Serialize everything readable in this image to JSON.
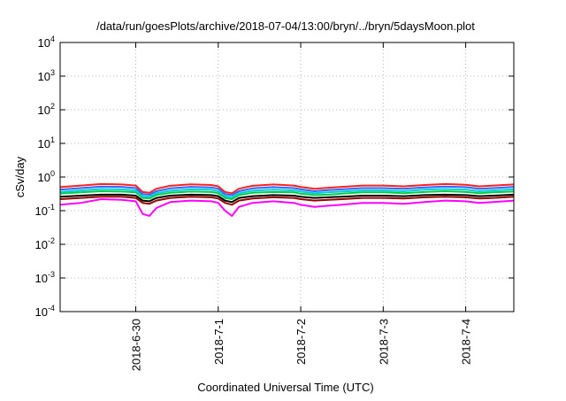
{
  "chart_data": {
    "type": "line",
    "title": "/data/run/goesPlots/archive/2018-07-04/13:00/bryn/../bryn/5daysMoon.plot",
    "xlabel": "Coordinated Universal Time (UTC)",
    "ylabel": "cSv/day",
    "xlim": [
      "2018-06-29T02:00",
      "2018-07-04T14:00"
    ],
    "yscale": "log",
    "ylim": [
      0.0001,
      10000
    ],
    "grid": true,
    "legend": "none",
    "x_ticks": [
      {
        "label": "2018-6-30",
        "value": "2018-06-30T00:00"
      },
      {
        "label": "2018-7-1",
        "value": "2018-07-01T00:00"
      },
      {
        "label": "2018-7-2",
        "value": "2018-07-02T00:00"
      },
      {
        "label": "2018-7-3",
        "value": "2018-07-03T00:00"
      },
      {
        "label": "2018-7-4",
        "value": "2018-07-04T00:00"
      }
    ],
    "y_ticks": [
      {
        "base": "10",
        "exp": "4",
        "value": 10000
      },
      {
        "base": "10",
        "exp": "3",
        "value": 1000
      },
      {
        "base": "10",
        "exp": "2",
        "value": 100
      },
      {
        "base": "10",
        "exp": "1",
        "value": 10
      },
      {
        "base": "10",
        "exp": "0",
        "value": 1
      },
      {
        "base": "10",
        "exp": "-1",
        "value": 0.1
      },
      {
        "base": "10",
        "exp": "-2",
        "value": 0.01
      },
      {
        "base": "10",
        "exp": "-3",
        "value": 0.001
      },
      {
        "base": "10",
        "exp": "-4",
        "value": 0.0001
      }
    ],
    "series": [
      {
        "color": "#ff00ff",
        "x": [
          "2018-06-29T02:00",
          "2018-06-29T08:00",
          "2018-06-29T14:00",
          "2018-06-29T20:00",
          "2018-06-30T00:00",
          "2018-06-30T02:00",
          "2018-06-30T04:00",
          "2018-06-30T06:00",
          "2018-06-30T10:00",
          "2018-06-30T16:00",
          "2018-06-30T22:00",
          "2018-07-01T00:00",
          "2018-07-01T02:00",
          "2018-07-01T04:00",
          "2018-07-01T06:00",
          "2018-07-01T10:00",
          "2018-07-01T16:00",
          "2018-07-01T22:00",
          "2018-07-02T00:00",
          "2018-07-02T04:00",
          "2018-07-02T08:00",
          "2018-07-02T12:00",
          "2018-07-02T18:00",
          "2018-07-03T00:00",
          "2018-07-03T06:00",
          "2018-07-03T12:00",
          "2018-07-03T18:00",
          "2018-07-04T00:00",
          "2018-07-04T04:00",
          "2018-07-04T08:00",
          "2018-07-04T14:00"
        ],
        "y": [
          0.15,
          0.17,
          0.22,
          0.21,
          0.19,
          0.08,
          0.07,
          0.12,
          0.18,
          0.2,
          0.19,
          0.17,
          0.1,
          0.07,
          0.13,
          0.17,
          0.19,
          0.17,
          0.15,
          0.13,
          0.14,
          0.15,
          0.17,
          0.17,
          0.16,
          0.18,
          0.2,
          0.19,
          0.17,
          0.18,
          0.2
        ]
      },
      {
        "color": "#990000",
        "x": [
          "2018-06-29T02:00",
          "2018-06-29T08:00",
          "2018-06-29T14:00",
          "2018-06-29T20:00",
          "2018-06-30T00:00",
          "2018-06-30T02:00",
          "2018-06-30T04:00",
          "2018-06-30T06:00",
          "2018-06-30T10:00",
          "2018-06-30T16:00",
          "2018-06-30T22:00",
          "2018-07-01T00:00",
          "2018-07-01T02:00",
          "2018-07-01T04:00",
          "2018-07-01T06:00",
          "2018-07-01T10:00",
          "2018-07-01T16:00",
          "2018-07-01T22:00",
          "2018-07-02T00:00",
          "2018-07-02T04:00",
          "2018-07-02T08:00",
          "2018-07-02T12:00",
          "2018-07-02T18:00",
          "2018-07-03T00:00",
          "2018-07-03T06:00",
          "2018-07-03T12:00",
          "2018-07-03T18:00",
          "2018-07-04T00:00",
          "2018-07-04T04:00",
          "2018-07-04T08:00",
          "2018-07-04T14:00"
        ],
        "y": [
          0.22,
          0.24,
          0.26,
          0.26,
          0.24,
          0.17,
          0.16,
          0.2,
          0.24,
          0.26,
          0.25,
          0.23,
          0.17,
          0.15,
          0.2,
          0.23,
          0.25,
          0.24,
          0.22,
          0.2,
          0.21,
          0.22,
          0.24,
          0.24,
          0.23,
          0.25,
          0.26,
          0.25,
          0.23,
          0.24,
          0.26
        ]
      },
      {
        "color": "#000000",
        "x": [
          "2018-06-29T02:00",
          "2018-06-29T08:00",
          "2018-06-29T14:00",
          "2018-06-29T20:00",
          "2018-06-30T00:00",
          "2018-06-30T02:00",
          "2018-06-30T04:00",
          "2018-06-30T06:00",
          "2018-06-30T10:00",
          "2018-06-30T16:00",
          "2018-06-30T22:00",
          "2018-07-01T00:00",
          "2018-07-01T02:00",
          "2018-07-01T04:00",
          "2018-07-01T06:00",
          "2018-07-01T10:00",
          "2018-07-01T16:00",
          "2018-07-01T22:00",
          "2018-07-02T00:00",
          "2018-07-02T04:00",
          "2018-07-02T08:00",
          "2018-07-02T12:00",
          "2018-07-02T18:00",
          "2018-07-03T00:00",
          "2018-07-03T06:00",
          "2018-07-03T12:00",
          "2018-07-03T18:00",
          "2018-07-04T00:00",
          "2018-07-04T04:00",
          "2018-07-04T08:00",
          "2018-07-04T14:00"
        ],
        "y": [
          0.26,
          0.28,
          0.3,
          0.3,
          0.28,
          0.2,
          0.19,
          0.24,
          0.28,
          0.3,
          0.29,
          0.27,
          0.2,
          0.18,
          0.24,
          0.27,
          0.29,
          0.28,
          0.26,
          0.24,
          0.25,
          0.26,
          0.28,
          0.28,
          0.27,
          0.29,
          0.3,
          0.29,
          0.27,
          0.28,
          0.3
        ]
      },
      {
        "color": "#00cc44",
        "x": [
          "2018-06-29T02:00",
          "2018-06-29T08:00",
          "2018-06-29T14:00",
          "2018-06-29T20:00",
          "2018-06-30T00:00",
          "2018-06-30T02:00",
          "2018-06-30T04:00",
          "2018-06-30T06:00",
          "2018-06-30T10:00",
          "2018-06-30T16:00",
          "2018-06-30T22:00",
          "2018-07-01T00:00",
          "2018-07-01T02:00",
          "2018-07-01T04:00",
          "2018-07-01T06:00",
          "2018-07-01T10:00",
          "2018-07-01T16:00",
          "2018-07-01T22:00",
          "2018-07-02T00:00",
          "2018-07-02T04:00",
          "2018-07-02T08:00",
          "2018-07-02T12:00",
          "2018-07-02T18:00",
          "2018-07-03T00:00",
          "2018-07-03T06:00",
          "2018-07-03T12:00",
          "2018-07-03T18:00",
          "2018-07-04T00:00",
          "2018-07-04T04:00",
          "2018-07-04T08:00",
          "2018-07-04T14:00"
        ],
        "y": [
          0.32,
          0.35,
          0.38,
          0.37,
          0.35,
          0.24,
          0.23,
          0.29,
          0.34,
          0.37,
          0.36,
          0.33,
          0.24,
          0.22,
          0.29,
          0.34,
          0.36,
          0.35,
          0.32,
          0.29,
          0.3,
          0.32,
          0.35,
          0.35,
          0.33,
          0.36,
          0.38,
          0.36,
          0.33,
          0.35,
          0.37
        ]
      },
      {
        "color": "#00ccdd",
        "x": [
          "2018-06-29T02:00",
          "2018-06-29T08:00",
          "2018-06-29T14:00",
          "2018-06-29T20:00",
          "2018-06-30T00:00",
          "2018-06-30T02:00",
          "2018-06-30T04:00",
          "2018-06-30T06:00",
          "2018-06-30T10:00",
          "2018-06-30T16:00",
          "2018-06-30T22:00",
          "2018-07-01T00:00",
          "2018-07-01T02:00",
          "2018-07-01T04:00",
          "2018-07-01T06:00",
          "2018-07-01T10:00",
          "2018-07-01T16:00",
          "2018-07-01T22:00",
          "2018-07-02T00:00",
          "2018-07-02T04:00",
          "2018-07-02T08:00",
          "2018-07-02T12:00",
          "2018-07-02T18:00",
          "2018-07-03T00:00",
          "2018-07-03T06:00",
          "2018-07-03T12:00",
          "2018-07-03T18:00",
          "2018-07-04T00:00",
          "2018-07-04T04:00",
          "2018-07-04T08:00",
          "2018-07-04T14:00"
        ],
        "y": [
          0.36,
          0.4,
          0.44,
          0.43,
          0.4,
          0.27,
          0.26,
          0.33,
          0.39,
          0.43,
          0.42,
          0.38,
          0.27,
          0.25,
          0.33,
          0.39,
          0.42,
          0.4,
          0.37,
          0.33,
          0.35,
          0.37,
          0.4,
          0.4,
          0.38,
          0.42,
          0.44,
          0.42,
          0.38,
          0.4,
          0.43
        ]
      },
      {
        "color": "#3366ff",
        "x": [
          "2018-06-29T02:00",
          "2018-06-29T08:00",
          "2018-06-29T14:00",
          "2018-06-29T20:00",
          "2018-06-30T00:00",
          "2018-06-30T02:00",
          "2018-06-30T04:00",
          "2018-06-30T06:00",
          "2018-06-30T10:00",
          "2018-06-30T16:00",
          "2018-06-30T22:00",
          "2018-07-01T00:00",
          "2018-07-01T02:00",
          "2018-07-01T04:00",
          "2018-07-01T06:00",
          "2018-07-01T10:00",
          "2018-07-01T16:00",
          "2018-07-01T22:00",
          "2018-07-02T00:00",
          "2018-07-02T04:00",
          "2018-07-02T08:00",
          "2018-07-02T12:00",
          "2018-07-02T18:00",
          "2018-07-03T00:00",
          "2018-07-03T06:00",
          "2018-07-03T12:00",
          "2018-07-03T18:00",
          "2018-07-04T00:00",
          "2018-07-04T04:00",
          "2018-07-04T08:00",
          "2018-07-04T14:00"
        ],
        "y": [
          0.42,
          0.47,
          0.52,
          0.51,
          0.47,
          0.31,
          0.3,
          0.38,
          0.46,
          0.51,
          0.49,
          0.45,
          0.31,
          0.29,
          0.38,
          0.46,
          0.5,
          0.47,
          0.43,
          0.38,
          0.41,
          0.43,
          0.47,
          0.47,
          0.45,
          0.49,
          0.52,
          0.5,
          0.45,
          0.47,
          0.51
        ]
      },
      {
        "color": "#ff2222",
        "x": [
          "2018-06-29T02:00",
          "2018-06-29T08:00",
          "2018-06-29T14:00",
          "2018-06-29T20:00",
          "2018-06-30T00:00",
          "2018-06-30T02:00",
          "2018-06-30T04:00",
          "2018-06-30T06:00",
          "2018-06-30T10:00",
          "2018-06-30T16:00",
          "2018-06-30T22:00",
          "2018-07-01T00:00",
          "2018-07-01T02:00",
          "2018-07-01T04:00",
          "2018-07-01T06:00",
          "2018-07-01T10:00",
          "2018-07-01T16:00",
          "2018-07-01T22:00",
          "2018-07-02T00:00",
          "2018-07-02T04:00",
          "2018-07-02T08:00",
          "2018-07-02T12:00",
          "2018-07-02T18:00",
          "2018-07-03T00:00",
          "2018-07-03T06:00",
          "2018-07-03T12:00",
          "2018-07-03T18:00",
          "2018-07-04T00:00",
          "2018-07-04T04:00",
          "2018-07-04T08:00",
          "2018-07-04T14:00"
        ],
        "y": [
          0.5,
          0.56,
          0.62,
          0.6,
          0.56,
          0.36,
          0.34,
          0.45,
          0.55,
          0.61,
          0.58,
          0.53,
          0.36,
          0.33,
          0.45,
          0.55,
          0.6,
          0.56,
          0.51,
          0.45,
          0.48,
          0.51,
          0.56,
          0.56,
          0.53,
          0.58,
          0.62,
          0.59,
          0.53,
          0.56,
          0.6
        ]
      }
    ]
  }
}
